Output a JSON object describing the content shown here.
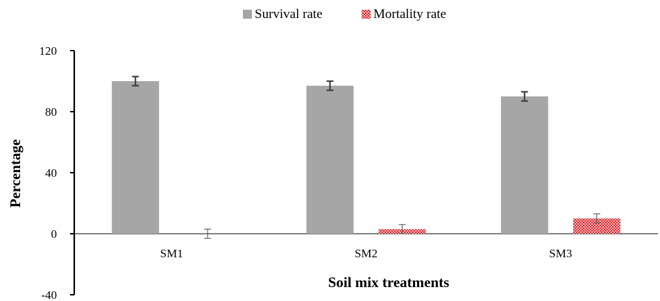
{
  "chart_data": {
    "type": "bar",
    "title": "",
    "xlabel": "Soil mix treatments",
    "ylabel": "Percentage",
    "categories": [
      "SM1",
      "SM2",
      "SM3"
    ],
    "ylim": [
      -40,
      120
    ],
    "yticks": [
      -40,
      0,
      40,
      80,
      120
    ],
    "grid": false,
    "legend_position": "top-center",
    "series": [
      {
        "name": "Survival rate",
        "values": [
          100,
          97,
          90
        ],
        "errors": [
          3,
          3,
          3
        ],
        "color": "#a6a6a6",
        "pattern": "solid"
      },
      {
        "name": "Mortality rate",
        "values": [
          0,
          3,
          10
        ],
        "errors": [
          3,
          3,
          3
        ],
        "color": "#e8474c",
        "pattern": "checker"
      }
    ]
  }
}
